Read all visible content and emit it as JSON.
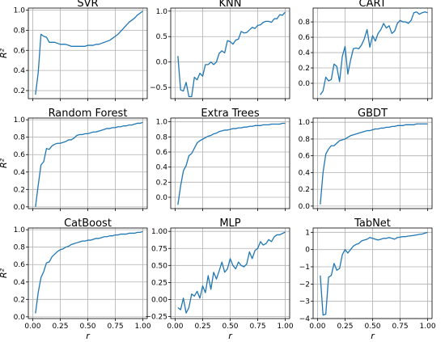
{
  "chart_data": [
    {
      "type": "line",
      "title": "SVR",
      "xlabel": "",
      "ylabel": "R²",
      "xlim": [
        -0.04,
        1.04
      ],
      "ylim": [
        0.12,
        1.02
      ],
      "xticks": [
        0.0,
        0.25,
        0.5,
        0.75,
        1.0
      ],
      "xtick_labels": [],
      "yticks": [
        0.2,
        0.4,
        0.6,
        0.8,
        1.0
      ],
      "ytick_labels": [
        "0.2",
        "0.4",
        "0.6",
        "0.8",
        "1.0"
      ],
      "grid": true,
      "color": "#1f77b4",
      "series": [
        {
          "x": [
            0.025,
            0.05,
            0.075,
            0.1,
            0.125,
            0.15,
            0.175,
            0.2,
            0.225,
            0.25,
            0.275,
            0.3,
            0.325,
            0.35,
            0.375,
            0.4,
            0.425,
            0.45,
            0.475,
            0.5,
            0.525,
            0.55,
            0.575,
            0.6,
            0.625,
            0.65,
            0.675,
            0.7,
            0.725,
            0.75,
            0.775,
            0.8,
            0.825,
            0.85,
            0.875,
            0.9,
            0.925,
            0.95,
            0.975,
            1.0
          ],
          "y": [
            0.16,
            0.38,
            0.76,
            0.74,
            0.73,
            0.68,
            0.68,
            0.68,
            0.67,
            0.66,
            0.66,
            0.66,
            0.65,
            0.64,
            0.64,
            0.64,
            0.64,
            0.64,
            0.64,
            0.65,
            0.65,
            0.65,
            0.66,
            0.66,
            0.67,
            0.68,
            0.69,
            0.7,
            0.72,
            0.74,
            0.76,
            0.79,
            0.82,
            0.85,
            0.88,
            0.9,
            0.92,
            0.95,
            0.97,
            0.99
          ]
        }
      ]
    },
    {
      "type": "line",
      "title": "KNN",
      "xlabel": "",
      "ylabel": "",
      "xlim": [
        -0.04,
        1.04
      ],
      "ylim": [
        -0.72,
        1.06
      ],
      "xticks": [
        0.0,
        0.25,
        0.5,
        0.75,
        1.0
      ],
      "xtick_labels": [],
      "yticks": [
        -0.5,
        0.0,
        0.5,
        1.0
      ],
      "ytick_labels": [
        "−0.5",
        "0.0",
        "0.5",
        "1.0"
      ],
      "grid": true,
      "color": "#1f77b4",
      "series": [
        {
          "x": [
            0.025,
            0.05,
            0.075,
            0.1,
            0.125,
            0.15,
            0.175,
            0.2,
            0.225,
            0.25,
            0.275,
            0.3,
            0.325,
            0.35,
            0.375,
            0.4,
            0.425,
            0.45,
            0.475,
            0.5,
            0.525,
            0.55,
            0.575,
            0.6,
            0.625,
            0.65,
            0.675,
            0.7,
            0.725,
            0.75,
            0.775,
            0.8,
            0.825,
            0.85,
            0.875,
            0.9,
            0.925,
            0.95,
            0.975,
            1.0
          ],
          "y": [
            0.12,
            -0.55,
            -0.57,
            -0.4,
            -0.68,
            -0.68,
            -0.3,
            -0.35,
            -0.22,
            -0.28,
            -0.05,
            -0.05,
            0.0,
            -0.05,
            0.0,
            0.17,
            0.22,
            0.18,
            0.42,
            0.4,
            0.35,
            0.43,
            0.45,
            0.6,
            0.57,
            0.58,
            0.63,
            0.68,
            0.66,
            0.72,
            0.73,
            0.78,
            0.8,
            0.8,
            0.78,
            0.85,
            0.85,
            0.93,
            0.92,
            0.98
          ]
        }
      ]
    },
    {
      "type": "line",
      "title": "CART",
      "xlabel": "",
      "ylabel": "",
      "xlim": [
        -0.04,
        1.04
      ],
      "ylim": [
        -0.2,
        0.98
      ],
      "xticks": [
        0.0,
        0.25,
        0.5,
        0.75,
        1.0
      ],
      "xtick_labels": [],
      "yticks": [
        0.0,
        0.2,
        0.4,
        0.6,
        0.8
      ],
      "ytick_labels": [
        "0.0",
        "0.2",
        "0.4",
        "0.6",
        "0.8"
      ],
      "grid": true,
      "color": "#1f77b4",
      "series": [
        {
          "x": [
            0.025,
            0.05,
            0.075,
            0.1,
            0.125,
            0.15,
            0.175,
            0.2,
            0.225,
            0.25,
            0.275,
            0.3,
            0.325,
            0.35,
            0.375,
            0.4,
            0.425,
            0.45,
            0.475,
            0.5,
            0.525,
            0.55,
            0.575,
            0.6,
            0.625,
            0.65,
            0.675,
            0.7,
            0.725,
            0.75,
            0.775,
            0.8,
            0.825,
            0.85,
            0.875,
            0.9,
            0.925,
            0.95,
            0.975,
            1.0
          ],
          "y": [
            -0.15,
            -0.1,
            0.08,
            0.03,
            0.05,
            0.25,
            0.22,
            0.02,
            0.35,
            0.48,
            0.12,
            0.3,
            0.45,
            0.46,
            0.45,
            0.5,
            0.58,
            0.7,
            0.47,
            0.62,
            0.55,
            0.65,
            0.7,
            0.78,
            0.72,
            0.75,
            0.65,
            0.68,
            0.78,
            0.82,
            0.8,
            0.8,
            0.78,
            0.82,
            0.92,
            0.93,
            0.9,
            0.92,
            0.93,
            0.92
          ]
        }
      ]
    },
    {
      "type": "line",
      "title": "Random Forest",
      "xlabel": "",
      "ylabel": "R²",
      "xlim": [
        -0.04,
        1.04
      ],
      "ylim": [
        -0.02,
        1.02
      ],
      "xticks": [
        0.0,
        0.25,
        0.5,
        0.75,
        1.0
      ],
      "xtick_labels": [],
      "yticks": [
        0.0,
        0.2,
        0.4,
        0.6,
        0.8,
        1.0
      ],
      "ytick_labels": [
        "0.0",
        "0.2",
        "0.4",
        "0.6",
        "0.8",
        "1.0"
      ],
      "grid": true,
      "color": "#1f77b4",
      "series": [
        {
          "x": [
            0.025,
            0.05,
            0.075,
            0.1,
            0.125,
            0.15,
            0.175,
            0.2,
            0.225,
            0.25,
            0.275,
            0.3,
            0.325,
            0.35,
            0.375,
            0.4,
            0.425,
            0.45,
            0.475,
            0.5,
            0.525,
            0.55,
            0.575,
            0.6,
            0.625,
            0.65,
            0.675,
            0.7,
            0.725,
            0.75,
            0.775,
            0.8,
            0.825,
            0.85,
            0.875,
            0.9,
            0.925,
            0.95,
            0.975,
            1.0
          ],
          "y": [
            0.0,
            0.25,
            0.48,
            0.52,
            0.67,
            0.66,
            0.7,
            0.72,
            0.73,
            0.73,
            0.74,
            0.75,
            0.77,
            0.77,
            0.79,
            0.82,
            0.83,
            0.83,
            0.84,
            0.84,
            0.85,
            0.86,
            0.86,
            0.87,
            0.88,
            0.89,
            0.9,
            0.9,
            0.91,
            0.91,
            0.92,
            0.92,
            0.93,
            0.93,
            0.94,
            0.94,
            0.95,
            0.96,
            0.96,
            0.97
          ]
        }
      ]
    },
    {
      "type": "line",
      "title": "Extra Trees",
      "xlabel": "",
      "ylabel": "",
      "xlim": [
        -0.04,
        1.04
      ],
      "ylim": [
        -0.15,
        1.05
      ],
      "xticks": [
        0.0,
        0.25,
        0.5,
        0.75,
        1.0
      ],
      "xtick_labels": [],
      "yticks": [
        0.0,
        0.2,
        0.4,
        0.6,
        0.8,
        1.0
      ],
      "ytick_labels": [
        "0.0",
        "0.2",
        "0.4",
        "0.6",
        "0.8",
        "1.0"
      ],
      "grid": true,
      "color": "#1f77b4",
      "series": [
        {
          "x": [
            0.025,
            0.05,
            0.075,
            0.1,
            0.125,
            0.15,
            0.175,
            0.2,
            0.225,
            0.25,
            0.275,
            0.3,
            0.325,
            0.35,
            0.375,
            0.4,
            0.425,
            0.45,
            0.475,
            0.5,
            0.525,
            0.55,
            0.575,
            0.6,
            0.625,
            0.65,
            0.675,
            0.7,
            0.725,
            0.75,
            0.775,
            0.8,
            0.825,
            0.85,
            0.875,
            0.9,
            0.925,
            0.95,
            0.975,
            1.0
          ],
          "y": [
            -0.1,
            0.15,
            0.35,
            0.42,
            0.55,
            0.58,
            0.65,
            0.72,
            0.75,
            0.77,
            0.79,
            0.81,
            0.82,
            0.84,
            0.85,
            0.87,
            0.88,
            0.89,
            0.89,
            0.9,
            0.91,
            0.91,
            0.92,
            0.92,
            0.93,
            0.93,
            0.94,
            0.94,
            0.95,
            0.95,
            0.95,
            0.96,
            0.96,
            0.96,
            0.97,
            0.97,
            0.97,
            0.97,
            0.98,
            0.98
          ]
        }
      ]
    },
    {
      "type": "line",
      "title": "GBDT",
      "xlabel": "",
      "ylabel": "",
      "xlim": [
        -0.04,
        1.04
      ],
      "ylim": [
        -0.03,
        1.05
      ],
      "xticks": [
        0.0,
        0.25,
        0.5,
        0.75,
        1.0
      ],
      "xtick_labels": [],
      "yticks": [
        0.0,
        0.2,
        0.4,
        0.6,
        0.8,
        1.0
      ],
      "ytick_labels": [
        "0.0",
        "0.2",
        "0.4",
        "0.6",
        "0.8",
        "1.0"
      ],
      "grid": true,
      "color": "#1f77b4",
      "series": [
        {
          "x": [
            0.025,
            0.05,
            0.075,
            0.1,
            0.125,
            0.15,
            0.175,
            0.2,
            0.225,
            0.25,
            0.275,
            0.3,
            0.325,
            0.35,
            0.375,
            0.4,
            0.425,
            0.45,
            0.475,
            0.5,
            0.525,
            0.55,
            0.575,
            0.6,
            0.625,
            0.65,
            0.675,
            0.7,
            0.725,
            0.75,
            0.775,
            0.8,
            0.825,
            0.85,
            0.875,
            0.9,
            0.925,
            0.95,
            0.975,
            1.0
          ],
          "y": [
            0.02,
            0.4,
            0.62,
            0.68,
            0.72,
            0.72,
            0.75,
            0.78,
            0.79,
            0.8,
            0.82,
            0.84,
            0.85,
            0.86,
            0.87,
            0.88,
            0.89,
            0.9,
            0.9,
            0.91,
            0.92,
            0.92,
            0.93,
            0.93,
            0.94,
            0.94,
            0.95,
            0.95,
            0.96,
            0.96,
            0.96,
            0.97,
            0.97,
            0.97,
            0.97,
            0.98,
            0.98,
            0.98,
            0.98,
            0.98
          ]
        }
      ]
    },
    {
      "type": "line",
      "title": "CatBoost",
      "xlabel": "r",
      "ylabel": "R²",
      "xlim": [
        -0.04,
        1.04
      ],
      "ylim": [
        -0.02,
        1.02
      ],
      "xticks": [
        0.0,
        0.25,
        0.5,
        0.75,
        1.0
      ],
      "xtick_labels": [
        "0.00",
        "0.25",
        "0.50",
        "0.75",
        "1.00"
      ],
      "yticks": [
        0.0,
        0.2,
        0.4,
        0.6,
        0.8,
        1.0
      ],
      "ytick_labels": [
        "0.0",
        "0.2",
        "0.4",
        "0.6",
        "0.8",
        "1.0"
      ],
      "grid": true,
      "color": "#1f77b4",
      "series": [
        {
          "x": [
            0.025,
            0.05,
            0.075,
            0.1,
            0.125,
            0.15,
            0.175,
            0.2,
            0.225,
            0.25,
            0.275,
            0.3,
            0.325,
            0.35,
            0.375,
            0.4,
            0.425,
            0.45,
            0.475,
            0.5,
            0.525,
            0.55,
            0.575,
            0.6,
            0.625,
            0.65,
            0.675,
            0.7,
            0.725,
            0.75,
            0.775,
            0.8,
            0.825,
            0.85,
            0.875,
            0.9,
            0.925,
            0.95,
            0.975,
            1.0
          ],
          "y": [
            0.04,
            0.28,
            0.45,
            0.52,
            0.62,
            0.63,
            0.69,
            0.72,
            0.75,
            0.77,
            0.78,
            0.8,
            0.81,
            0.83,
            0.84,
            0.85,
            0.86,
            0.87,
            0.87,
            0.88,
            0.88,
            0.89,
            0.9,
            0.9,
            0.91,
            0.92,
            0.92,
            0.93,
            0.93,
            0.94,
            0.94,
            0.95,
            0.95,
            0.95,
            0.96,
            0.96,
            0.96,
            0.97,
            0.97,
            0.98
          ]
        }
      ]
    },
    {
      "type": "line",
      "title": "MLP",
      "xlabel": "r",
      "ylabel": "",
      "xlim": [
        -0.04,
        1.04
      ],
      "ylim": [
        -0.28,
        1.05
      ],
      "xticks": [
        0.0,
        0.25,
        0.5,
        0.75,
        1.0
      ],
      "xtick_labels": [
        "0.00",
        "0.25",
        "0.50",
        "0.75",
        "1.00"
      ],
      "yticks": [
        -0.25,
        0.0,
        0.25,
        0.5,
        0.75,
        1.0
      ],
      "ytick_labels": [
        "−0.25",
        "0.00",
        "0.25",
        "0.50",
        "0.75",
        "1.00"
      ],
      "grid": true,
      "color": "#1f77b4",
      "series": [
        {
          "x": [
            0.025,
            0.05,
            0.075,
            0.1,
            0.125,
            0.15,
            0.175,
            0.2,
            0.225,
            0.25,
            0.275,
            0.3,
            0.325,
            0.35,
            0.375,
            0.4,
            0.425,
            0.45,
            0.475,
            0.5,
            0.525,
            0.55,
            0.575,
            0.6,
            0.625,
            0.65,
            0.675,
            0.7,
            0.725,
            0.75,
            0.775,
            0.8,
            0.825,
            0.85,
            0.875,
            0.9,
            0.925,
            0.95,
            0.975,
            1.0
          ],
          "y": [
            -0.12,
            -0.15,
            0.02,
            -0.2,
            -0.12,
            0.08,
            0.05,
            0.12,
            0.02,
            0.2,
            0.1,
            0.35,
            0.15,
            0.4,
            0.3,
            0.42,
            0.55,
            0.4,
            0.45,
            0.6,
            0.5,
            0.45,
            0.55,
            0.5,
            0.48,
            0.52,
            0.7,
            0.6,
            0.72,
            0.75,
            0.85,
            0.8,
            0.82,
            0.88,
            0.85,
            0.92,
            0.95,
            0.95,
            0.97,
            0.99
          ]
        }
      ]
    },
    {
      "type": "line",
      "title": "TabNet",
      "xlabel": "r",
      "ylabel": "",
      "xlim": [
        -0.04,
        1.04
      ],
      "ylim": [
        -4.0,
        1.25
      ],
      "xticks": [
        0.0,
        0.25,
        0.5,
        0.75,
        1.0
      ],
      "xtick_labels": [
        "0.00",
        "0.25",
        "0.50",
        "0.75",
        "1.00"
      ],
      "yticks": [
        -4,
        -3,
        -2,
        -1,
        0,
        1
      ],
      "ytick_labels": [
        "−4",
        "−3",
        "−2",
        "−1",
        "0",
        "1"
      ],
      "grid": true,
      "color": "#1f77b4",
      "series": [
        {
          "x": [
            0.025,
            0.05,
            0.075,
            0.1,
            0.125,
            0.15,
            0.175,
            0.2,
            0.225,
            0.25,
            0.275,
            0.3,
            0.325,
            0.35,
            0.375,
            0.4,
            0.425,
            0.45,
            0.475,
            0.5,
            0.525,
            0.55,
            0.575,
            0.6,
            0.625,
            0.65,
            0.675,
            0.7,
            0.725,
            0.75,
            0.775,
            0.8,
            0.825,
            0.85,
            0.875,
            0.9,
            0.925,
            0.95,
            0.975,
            1.0
          ],
          "y": [
            -1.5,
            -3.8,
            -3.75,
            -1.6,
            -1.5,
            -0.8,
            -1.2,
            -1.1,
            -0.3,
            0.0,
            -0.2,
            0.0,
            0.2,
            0.3,
            0.35,
            0.5,
            0.55,
            0.6,
            0.7,
            0.65,
            0.6,
            0.55,
            0.6,
            0.65,
            0.65,
            0.7,
            0.65,
            0.6,
            0.7,
            0.72,
            0.75,
            0.75,
            0.78,
            0.8,
            0.82,
            0.85,
            0.88,
            0.9,
            0.95,
            1.0
          ]
        }
      ]
    }
  ]
}
